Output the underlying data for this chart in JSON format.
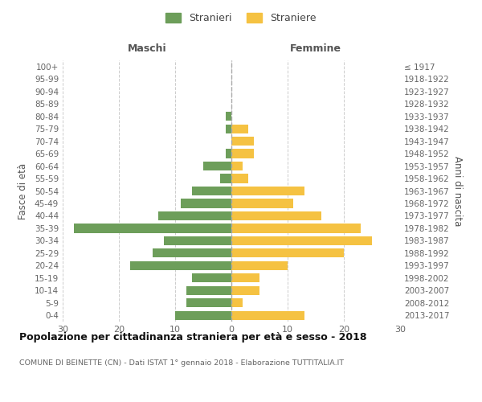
{
  "age_groups": [
    "0-4",
    "5-9",
    "10-14",
    "15-19",
    "20-24",
    "25-29",
    "30-34",
    "35-39",
    "40-44",
    "45-49",
    "50-54",
    "55-59",
    "60-64",
    "65-69",
    "70-74",
    "75-79",
    "80-84",
    "85-89",
    "90-94",
    "95-99",
    "100+"
  ],
  "birth_years": [
    "2013-2017",
    "2008-2012",
    "2003-2007",
    "1998-2002",
    "1993-1997",
    "1988-1992",
    "1983-1987",
    "1978-1982",
    "1973-1977",
    "1968-1972",
    "1963-1967",
    "1958-1962",
    "1953-1957",
    "1948-1952",
    "1943-1947",
    "1938-1942",
    "1933-1937",
    "1928-1932",
    "1923-1927",
    "1918-1922",
    "≤ 1917"
  ],
  "maschi": [
    10,
    8,
    8,
    7,
    18,
    14,
    12,
    28,
    13,
    9,
    7,
    2,
    5,
    1,
    0,
    1,
    1,
    0,
    0,
    0,
    0
  ],
  "femmine": [
    13,
    2,
    5,
    5,
    10,
    20,
    25,
    23,
    16,
    11,
    13,
    3,
    2,
    4,
    4,
    3,
    0,
    0,
    0,
    0,
    0
  ],
  "male_color": "#6d9e5a",
  "female_color": "#f5c242",
  "background_color": "#ffffff",
  "grid_color": "#cccccc",
  "title": "Popolazione per cittadinanza straniera per età e sesso - 2018",
  "subtitle": "COMUNE DI BEINETTE (CN) - Dati ISTAT 1° gennaio 2018 - Elaborazione TUTTITALIA.IT",
  "ylabel_left": "Fasce di età",
  "ylabel_right": "Anni di nascita",
  "xlabel_left": "Maschi",
  "xlabel_right": "Femmine",
  "legend_male": "Stranieri",
  "legend_female": "Straniere",
  "xlim": 30
}
